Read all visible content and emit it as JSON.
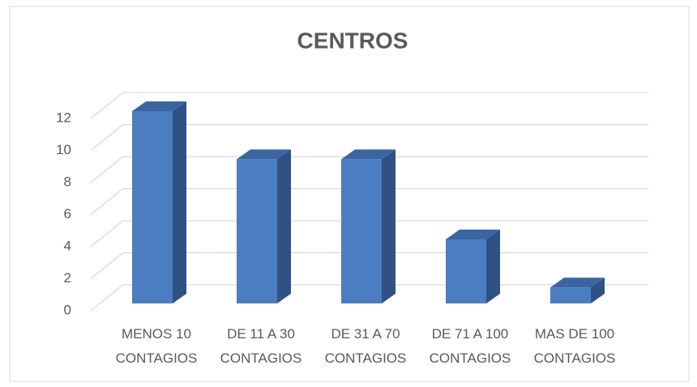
{
  "chart_data": {
    "type": "bar3d",
    "title": "CENTROS",
    "categories": [
      "MENOS 10\nCONTAGIOS",
      "DE 11 A 30\nCONTAGIOS",
      "DE 31 A 70\nCONTAGIOS",
      "DE 71 A 100\nCONTAGIOS",
      "MAS DE 100\nCONTAGIOS"
    ],
    "values": [
      12,
      9,
      9,
      4,
      1
    ],
    "color": "#4a7ec0",
    "ylim": [
      0,
      12
    ],
    "yticks": [
      0,
      2,
      4,
      6,
      8,
      10,
      12
    ],
    "grid": true
  }
}
